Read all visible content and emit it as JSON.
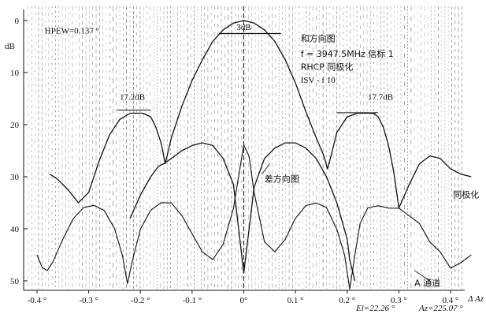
{
  "chart_data": {
    "type": "line",
    "ylabel": "dB",
    "xlabel": "Δ Az",
    "xlim": [
      -0.4,
      0.45
    ],
    "ylim": [
      0,
      52
    ],
    "y_axis_inverted": true,
    "grid": "dense dashed vertical lines",
    "x_ticks": [
      "-0.4 °",
      "-0.3 °",
      "-0.2 °",
      "-0.1 °",
      "0°",
      "0.1 °",
      "0.2 °",
      "0.3 °",
      "0.4 °"
    ],
    "x_tick_values": [
      -0.4,
      -0.3,
      -0.2,
      -0.1,
      0,
      0.1,
      0.2,
      0.3,
      0.4
    ],
    "y_ticks": [
      "0",
      "10",
      "20",
      "30",
      "40",
      "50"
    ],
    "y_tick_values": [
      0,
      10,
      20,
      30,
      40,
      50
    ],
    "series": [
      {
        "name": "和方向图",
        "x": [
          -0.2,
          -0.195,
          -0.18,
          -0.17,
          -0.16,
          -0.152,
          -0.14,
          -0.12,
          -0.1,
          -0.08,
          -0.06,
          -0.04,
          -0.02,
          0,
          0.02,
          0.04,
          0.06,
          0.08,
          0.1,
          0.12,
          0.14,
          0.155,
          0.162,
          0.17,
          0.18,
          0.2,
          0.22,
          0.24,
          0.255
        ],
        "y": [
          17.8,
          17.8,
          18.5,
          20.5,
          23.5,
          27.5,
          22.5,
          16.5,
          11.5,
          7.5,
          4.0,
          1.8,
          0.5,
          0.0,
          0.5,
          1.8,
          4.0,
          7.5,
          12.0,
          17.5,
          22.5,
          26.0,
          28.5,
          25.5,
          21.5,
          18.5,
          17.8,
          17.8,
          17.8
        ]
      },
      {
        "name": "差方向图",
        "x": [
          -0.22,
          -0.2,
          -0.18,
          -0.165,
          -0.155,
          -0.14,
          -0.12,
          -0.1,
          -0.08,
          -0.06,
          -0.04,
          -0.02,
          0,
          0.02,
          0.04,
          0.06,
          0.08,
          0.1,
          0.12,
          0.14,
          0.16,
          0.18,
          0.2,
          0.205,
          0.215
        ],
        "y": [
          38.0,
          33.5,
          30.0,
          28.0,
          27.5,
          26.5,
          25.0,
          24.0,
          23.5,
          24.0,
          26.5,
          31.5,
          48.5,
          32.0,
          26.5,
          24.5,
          23.5,
          23.5,
          24.5,
          26.5,
          30.0,
          35.0,
          42.0,
          46.0,
          50.0
        ]
      },
      {
        "name": "同极化",
        "x": [
          -0.375,
          -0.36,
          -0.34,
          -0.32,
          -0.3,
          -0.28,
          -0.26,
          -0.24,
          -0.22,
          -0.21,
          -0.2,
          0.25,
          0.26,
          0.27,
          0.28,
          0.29,
          0.3,
          0.32,
          0.34,
          0.36,
          0.38,
          0.4,
          0.42,
          0.44
        ],
        "y": [
          29.5,
          30.5,
          32.5,
          35.0,
          33.0,
          27.0,
          22.0,
          19.0,
          17.8,
          17.8,
          17.8,
          17.8,
          18.5,
          20.5,
          24.0,
          29.0,
          36.0,
          31.5,
          27.5,
          26.0,
          26.5,
          28.5,
          29.5,
          30.0
        ]
      },
      {
        "name": "A 通道",
        "x": [
          -0.4,
          -0.39,
          -0.38,
          -0.37,
          -0.35,
          -0.33,
          -0.31,
          -0.29,
          -0.27,
          -0.25,
          -0.235,
          -0.225,
          -0.215,
          -0.2,
          -0.18,
          -0.16,
          -0.14,
          -0.12,
          -0.1,
          -0.08,
          -0.06,
          -0.04,
          -0.02,
          -0.01,
          0,
          0.01,
          0.02,
          0.04,
          0.06,
          0.08,
          0.1,
          0.12,
          0.14,
          0.16,
          0.18,
          0.195,
          0.205,
          0.215,
          0.225,
          0.24,
          0.26,
          0.28,
          0.3,
          0.32,
          0.34,
          0.36,
          0.38,
          0.4,
          0.42,
          0.44
        ],
        "y": [
          45.0,
          47.5,
          48.0,
          46.5,
          42.0,
          38.0,
          36.0,
          35.5,
          36.5,
          40.0,
          45.0,
          50.5,
          46.0,
          40.0,
          36.5,
          35.0,
          35.0,
          37.5,
          41.0,
          44.5,
          46.0,
          43.0,
          36.0,
          30.0,
          24.0,
          26.0,
          33.0,
          42.5,
          44.5,
          42.0,
          38.0,
          35.5,
          35.0,
          36.0,
          40.0,
          45.0,
          51.5,
          45.0,
          39.0,
          36.0,
          35.5,
          36.0,
          36.0,
          37.5,
          39.0,
          42.5,
          44.5,
          47.5,
          46.5,
          45.0
        ]
      }
    ],
    "annotations": [
      {
        "text": "HPEW=0.137 °",
        "x": -0.385,
        "y": 2.5
      },
      {
        "text": "3dB",
        "x": 0.0,
        "y": 1.8
      },
      {
        "text": "和方向图",
        "x": 0.11,
        "y": 4.0
      },
      {
        "text": "f = 3947.5MHz 信标 1",
        "x": 0.11,
        "y": 7.0
      },
      {
        "text": "RHCP 同极化",
        "x": 0.11,
        "y": 9.5
      },
      {
        "text": "ISV - f 10",
        "x": 0.11,
        "y": 12.0
      },
      {
        "text": "17.2dB",
        "x": -0.24,
        "y": 15.2
      },
      {
        "text": "17.7dB",
        "x": 0.24,
        "y": 15.2
      },
      {
        "text": "差方向图",
        "x": 0.04,
        "y": 31.0
      },
      {
        "text": "同极化",
        "x": 0.405,
        "y": 34.0
      },
      {
        "text": "A 通道",
        "x": 0.33,
        "y": 51.0
      }
    ],
    "readouts": {
      "el": "El=22.26 °",
      "az": "Az=225.07 °"
    }
  }
}
